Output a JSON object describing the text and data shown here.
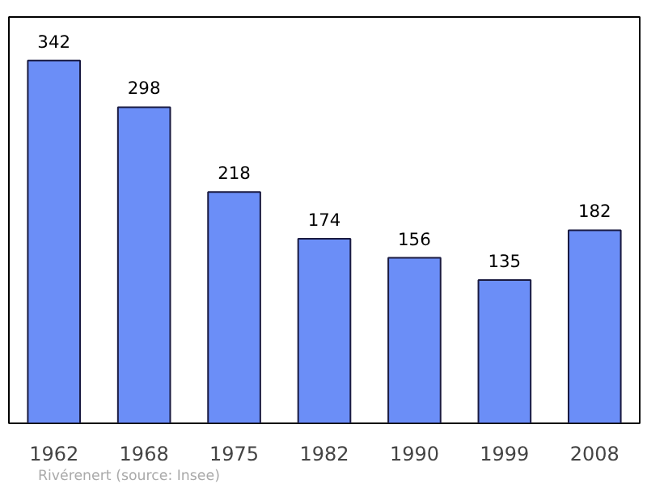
{
  "chart_data": {
    "type": "bar",
    "categories": [
      "1962",
      "1968",
      "1975",
      "1982",
      "1990",
      "1999",
      "2008"
    ],
    "values": [
      342,
      298,
      218,
      174,
      156,
      135,
      182
    ],
    "color": "#6b8ef7",
    "data_labels": true,
    "grid": false,
    "annotations": [
      "Rivérenert    (source: Insee)"
    ]
  }
}
